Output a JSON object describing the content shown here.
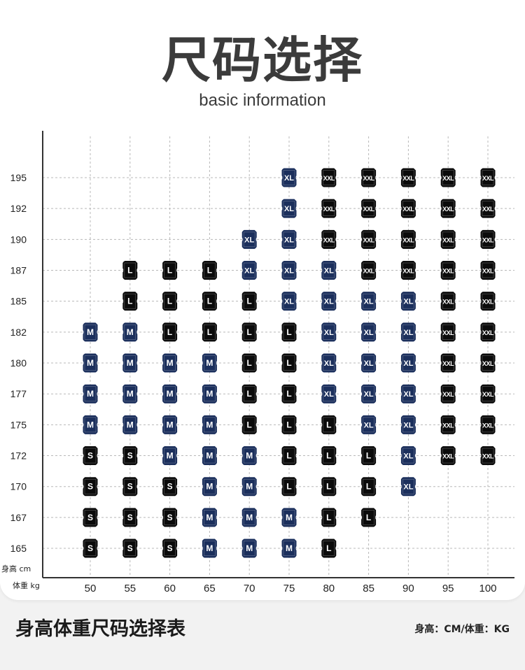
{
  "header": {
    "title": "尺码选择",
    "subtitle": "basic information"
  },
  "footer": {
    "title": "身高体重尺码选择表",
    "unit_note": "身高：CM/体重：KG"
  },
  "colors": {
    "S": "#0b0b0b",
    "M": "#1b2f5c",
    "L": "#0b0b0b",
    "XL": "#1b2f5c",
    "XXL": "#0b0b0b",
    "grid": "#b8b8b8",
    "axis": "#333333"
  },
  "chart_data": {
    "type": "table",
    "ylabel": "身高 cm",
    "xlabel": "体重 kg",
    "x": [
      50,
      55,
      60,
      65,
      70,
      75,
      80,
      85,
      90,
      95,
      100
    ],
    "y": [
      195,
      192,
      190,
      187,
      185,
      182,
      180,
      177,
      175,
      172,
      170,
      167,
      165
    ],
    "grid": true,
    "cells": [
      [
        "",
        "",
        "",
        "",
        "",
        "XL",
        "XXL",
        "XXL",
        "XXL",
        "XXL",
        "XXL"
      ],
      [
        "",
        "",
        "",
        "",
        "",
        "XL",
        "XXL",
        "XXL",
        "XXL",
        "XXL",
        "XXL"
      ],
      [
        "",
        "",
        "",
        "",
        "XL",
        "XL",
        "XXL",
        "XXL",
        "XXL",
        "XXL",
        "XXL"
      ],
      [
        "",
        "L",
        "L",
        "L",
        "XL",
        "XL",
        "XL",
        "XXL",
        "XXL",
        "XXL",
        "XXL"
      ],
      [
        "",
        "L",
        "L",
        "L",
        "L",
        "XL",
        "XL",
        "XL",
        "XL",
        "XXL",
        "XXL"
      ],
      [
        "M",
        "M",
        "L",
        "L",
        "L",
        "L",
        "XL",
        "XL",
        "XL",
        "XXL",
        "XXL"
      ],
      [
        "M",
        "M",
        "M",
        "M",
        "L",
        "L",
        "XL",
        "XL",
        "XL",
        "XXL",
        "XXL"
      ],
      [
        "M",
        "M",
        "M",
        "M",
        "L",
        "L",
        "XL",
        "XL",
        "XL",
        "XXL",
        "XXL"
      ],
      [
        "M",
        "M",
        "M",
        "M",
        "L",
        "L",
        "L",
        "XL",
        "XL",
        "XXL",
        "XXL"
      ],
      [
        "S",
        "S",
        "M",
        "M",
        "M",
        "L",
        "L",
        "L",
        "XL",
        "XXL",
        "XXL"
      ],
      [
        "S",
        "S",
        "S",
        "M",
        "M",
        "L",
        "L",
        "L",
        "XL",
        "",
        ""
      ],
      [
        "S",
        "S",
        "S",
        "M",
        "M",
        "M",
        "L",
        "L",
        "",
        "",
        ""
      ],
      [
        "S",
        "S",
        "S",
        "M",
        "M",
        "M",
        "L",
        "",
        "",
        "",
        ""
      ]
    ]
  }
}
